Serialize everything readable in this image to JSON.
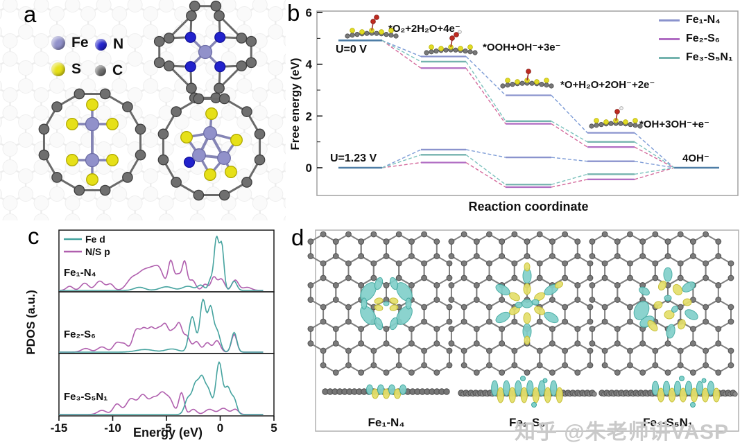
{
  "watermark": {
    "text": "知乎 @朱老师讲VASP",
    "color": "#c9c9c9"
  },
  "panels": {
    "a": {
      "letter": "a",
      "legend": [
        {
          "symbol": "Fe",
          "color": "#9191ca"
        },
        {
          "symbol": "N",
          "color": "#2222cc"
        },
        {
          "symbol": "S",
          "color": "#e6e018"
        },
        {
          "symbol": "C",
          "color": "#6f6f6f"
        }
      ]
    },
    "b": {
      "letter": "b"
    },
    "c": {
      "letter": "c"
    },
    "d": {
      "letter": "d",
      "labels": [
        "Fe₁-N₄",
        "Fe₂-S₆",
        "Fe₃-S₅N₁"
      ],
      "iso_colors": {
        "charge_accumulation_yellow": "#e4df6b",
        "charge_depletion_cyan": "#82d0ca"
      },
      "carbon_color": "#7b7b7b"
    }
  },
  "chart_data": [
    {
      "id": "free-energy-diagram",
      "type": "line",
      "subtype": "stepped-free-energy",
      "xlabel": "Reaction coordinate",
      "ylabel": "Free energy (eV)",
      "ylim": [
        -1.1,
        6
      ],
      "yticks": [
        0,
        2,
        4,
        6
      ],
      "legend_position": "top-right",
      "condition_labels": [
        "U=0 V",
        "U=1.23 V"
      ],
      "step_labels": [
        "*O₂+2H₂O+4e⁻",
        "*OOH+OH⁻+3e⁻",
        "*O+H₂O+2OH⁻+2e⁻",
        "*OH+3OH⁻+e⁻",
        "4OH⁻"
      ],
      "shared_level_color": "#4e7da6",
      "series": [
        {
          "name": "Fe₁-N₄",
          "color": "#8a93cd",
          "dash_color": "#7c9bd6",
          "U0_levels": [
            4.92,
            4.3,
            2.8,
            1.35,
            0
          ],
          "U123_levels": [
            0,
            0.7,
            0.4,
            0.25,
            0
          ]
        },
        {
          "name": "Fe₂-S₆",
          "color": "#b06dc3",
          "dash_color": "#d4699c",
          "U0_levels": [
            4.92,
            3.85,
            1.7,
            0.8,
            0
          ],
          "U123_levels": [
            0,
            0.2,
            -0.75,
            -0.45,
            0
          ]
        },
        {
          "name": "Fe₃-S₅N₁",
          "color": "#74b3ae",
          "dash_color": "#7cc2bd",
          "U0_levels": [
            4.92,
            4.1,
            1.8,
            1.0,
            0
          ],
          "U123_levels": [
            0,
            0.5,
            -0.65,
            -0.25,
            0
          ]
        }
      ]
    },
    {
      "id": "pdos",
      "type": "line",
      "xlabel": "Energy (eV)",
      "ylabel": "PDOS (a.u.)",
      "xlim": [
        -15,
        5
      ],
      "xticks": [
        -15,
        -10,
        -5,
        0,
        5
      ],
      "legend": [
        {
          "label": "Fe d",
          "color": "#45a39f"
        },
        {
          "label": "N/S p",
          "color": "#b05fae"
        }
      ],
      "peak_format": "[center_eV, height_au, width_eV]",
      "panels": [
        {
          "label": "Fe₁-N₄",
          "fe_d_peaks": [
            [
              -7.5,
              0.06,
              0.5
            ],
            [
              -5,
              0.07,
              0.6
            ],
            [
              -3,
              0.08,
              0.5
            ],
            [
              -1.8,
              0.1,
              0.3
            ],
            [
              -0.9,
              0.2,
              0.2
            ],
            [
              -0.35,
              1.0,
              0.22
            ],
            [
              0.15,
              0.85,
              0.2
            ],
            [
              1.3,
              0.18,
              0.25
            ]
          ],
          "n_s_p_peaks": [
            [
              -14,
              0.08,
              0.3
            ],
            [
              -12.6,
              0.14,
              0.35
            ],
            [
              -11.2,
              0.18,
              0.4
            ],
            [
              -10.2,
              0.12,
              0.3
            ],
            [
              -8.2,
              0.22,
              0.5
            ],
            [
              -7.2,
              0.3,
              0.5
            ],
            [
              -6.3,
              0.34,
              0.5
            ],
            [
              -5.6,
              0.3,
              0.4
            ],
            [
              -4.6,
              0.55,
              0.25
            ],
            [
              -3.9,
              0.3,
              0.3
            ],
            [
              -3.3,
              0.52,
              0.22
            ],
            [
              -2.6,
              0.2,
              0.3
            ],
            [
              -1.4,
              0.12,
              0.25
            ],
            [
              -0.6,
              0.25,
              0.25
            ],
            [
              0.1,
              0.22,
              0.3
            ],
            [
              1.4,
              0.2,
              0.3
            ],
            [
              2.5,
              0.06,
              0.4
            ]
          ]
        },
        {
          "label": "Fe₂-S₆",
          "fe_d_peaks": [
            [
              -7,
              0.05,
              0.8
            ],
            [
              -4.5,
              0.06,
              0.6
            ],
            [
              -2.6,
              0.68,
              0.3
            ],
            [
              -1.6,
              1.0,
              0.28
            ],
            [
              -0.9,
              0.8,
              0.25
            ],
            [
              -0.3,
              0.4,
              0.3
            ],
            [
              1.3,
              0.38,
              0.25
            ]
          ],
          "n_s_p_peaks": [
            [
              -12.5,
              0.07,
              0.4
            ],
            [
              -11,
              0.1,
              0.4
            ],
            [
              -9.6,
              0.18,
              0.35
            ],
            [
              -8.9,
              0.14,
              0.3
            ],
            [
              -7.8,
              0.42,
              0.35
            ],
            [
              -7.1,
              0.36,
              0.3
            ],
            [
              -6.4,
              0.44,
              0.35
            ],
            [
              -5.7,
              0.36,
              0.3
            ],
            [
              -5.1,
              0.48,
              0.3
            ],
            [
              -4.4,
              0.36,
              0.3
            ],
            [
              -3.8,
              0.5,
              0.28
            ],
            [
              -3.1,
              0.3,
              0.3
            ],
            [
              -2.2,
              0.2,
              0.3
            ],
            [
              -1.2,
              0.18,
              0.3
            ],
            [
              -0.3,
              0.22,
              0.3
            ],
            [
              1.3,
              0.34,
              0.25
            ]
          ]
        },
        {
          "label": "Fe₃-S₅N₁",
          "fe_d_peaks": [
            [
              -3,
              0.3,
              0.3
            ],
            [
              -2.3,
              0.55,
              0.3
            ],
            [
              -1.7,
              0.62,
              0.28
            ],
            [
              -1.1,
              0.45,
              0.3
            ],
            [
              -0.1,
              1.0,
              0.3
            ],
            [
              0.7,
              0.5,
              0.28
            ],
            [
              1.3,
              0.28,
              0.25
            ]
          ],
          "n_s_p_peaks": [
            [
              -11,
              0.08,
              0.4
            ],
            [
              -9.6,
              0.2,
              0.35
            ],
            [
              -8.3,
              0.3,
              0.45
            ],
            [
              -7.2,
              0.36,
              0.4
            ],
            [
              -6.2,
              0.3,
              0.4
            ],
            [
              -5.4,
              0.36,
              0.35
            ],
            [
              -4.7,
              0.28,
              0.35
            ],
            [
              -3.6,
              0.42,
              0.25
            ],
            [
              -2.5,
              0.1,
              0.3
            ],
            [
              -1,
              0.1,
              0.4
            ],
            [
              0.3,
              0.12,
              0.4
            ],
            [
              1.4,
              0.1,
              0.3
            ]
          ]
        }
      ]
    }
  ]
}
